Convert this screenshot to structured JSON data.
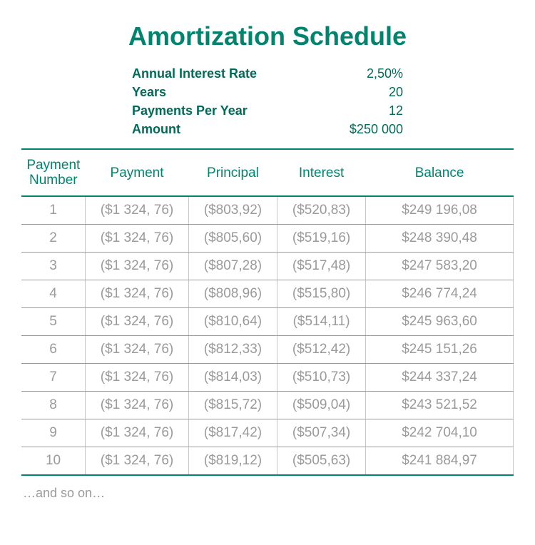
{
  "title": "Amortization Schedule",
  "params": {
    "rate_label": "Annual Interest Rate",
    "rate_value": "2,50%",
    "years_label": "Years",
    "years_value": "20",
    "ppy_label": "Payments Per Year",
    "ppy_value": "12",
    "amount_label": "Amount",
    "amount_value": "$250 000"
  },
  "table": {
    "columns": {
      "num": "Payment Number",
      "num_l1": "Payment",
      "num_l2": "Number",
      "payment": "Payment",
      "principal": "Principal",
      "interest": "Interest",
      "balance": "Balance"
    },
    "rows": [
      {
        "n": "1",
        "payment": "($1 324, 76)",
        "principal": "($803,92)",
        "interest": "($520,83)",
        "balance": "$249 196,08"
      },
      {
        "n": "2",
        "payment": "($1 324, 76)",
        "principal": "($805,60)",
        "interest": "($519,16)",
        "balance": "$248 390,48"
      },
      {
        "n": "3",
        "payment": "($1 324, 76)",
        "principal": "($807,28)",
        "interest": "($517,48)",
        "balance": "$247 583,20"
      },
      {
        "n": "4",
        "payment": "($1 324, 76)",
        "principal": "($808,96)",
        "interest": "($515,80)",
        "balance": "$246 774,24"
      },
      {
        "n": "5",
        "payment": "($1 324, 76)",
        "principal": "($810,64)",
        "interest": "($514,11)",
        "balance": "$245 963,60"
      },
      {
        "n": "6",
        "payment": "($1 324, 76)",
        "principal": "($812,33)",
        "interest": "($512,42)",
        "balance": "$245 151,26"
      },
      {
        "n": "7",
        "payment": "($1 324, 76)",
        "principal": "($814,03)",
        "interest": "($510,73)",
        "balance": "$244 337,24"
      },
      {
        "n": "8",
        "payment": "($1 324, 76)",
        "principal": "($815,72)",
        "interest": "($509,04)",
        "balance": "$243 521,52"
      },
      {
        "n": "9",
        "payment": "($1 324, 76)",
        "principal": "($817,42)",
        "interest": "($507,34)",
        "balance": "$242 704,10"
      },
      {
        "n": "10",
        "payment": "($1 324, 76)",
        "principal": "($819,12)",
        "interest": "($505,63)",
        "balance": "$241 884,97"
      }
    ]
  },
  "footer": "…and so on…",
  "style": {
    "accent_color": "#00846e",
    "header_text_color": "#006b58",
    "data_text_color": "#9a9a9a",
    "cell_border_color": "#c8c8c8",
    "background": "#ffffff",
    "title_fontsize": 36,
    "param_fontsize": 18,
    "header_fontsize": 19,
    "cell_fontsize": 19
  }
}
